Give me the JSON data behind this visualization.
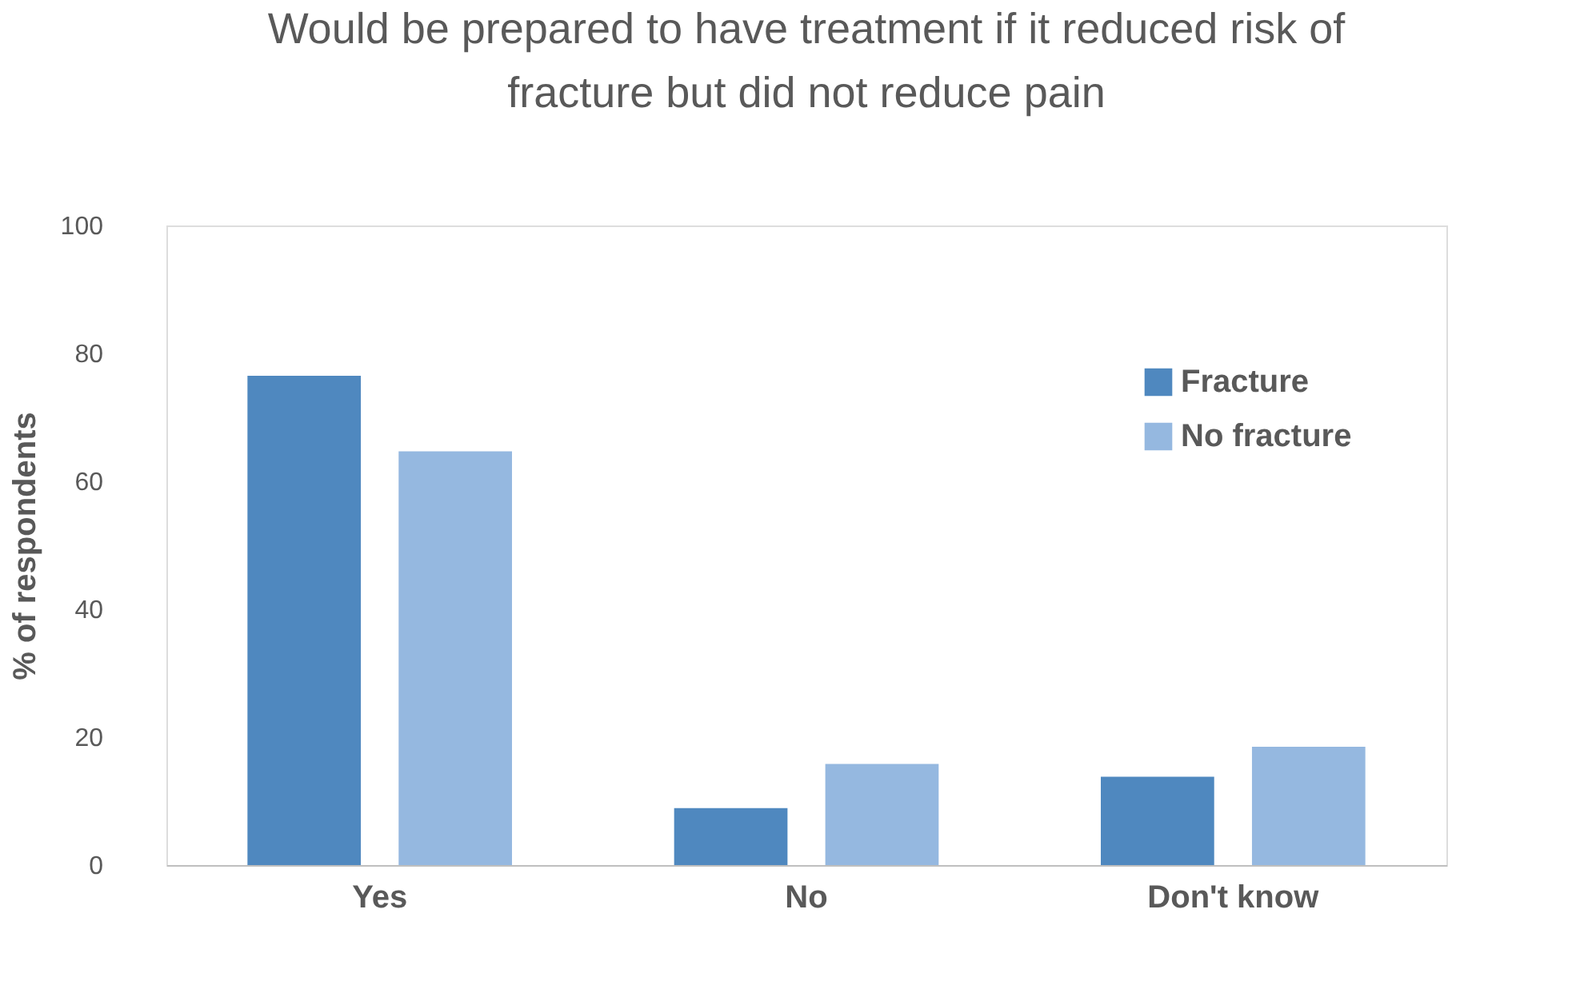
{
  "chart_data": {
    "type": "bar",
    "title": "Would be prepared to have treatment if it reduced risk of\nfracture but did not reduce pain",
    "ylabel": "% of respondents",
    "categories": [
      "Yes",
      "No",
      "Don't know"
    ],
    "series": [
      {
        "name": "Fracture",
        "color": "#4f88bf",
        "values": [
          76.5,
          8.9,
          13.8
        ]
      },
      {
        "name": "No fracture",
        "color": "#95b8e0",
        "values": [
          64.7,
          15.8,
          18.5
        ]
      }
    ],
    "ylim": [
      0,
      100
    ],
    "yticks": [
      0,
      20,
      40,
      60,
      80,
      100
    ],
    "grid": false,
    "legend": "right"
  }
}
